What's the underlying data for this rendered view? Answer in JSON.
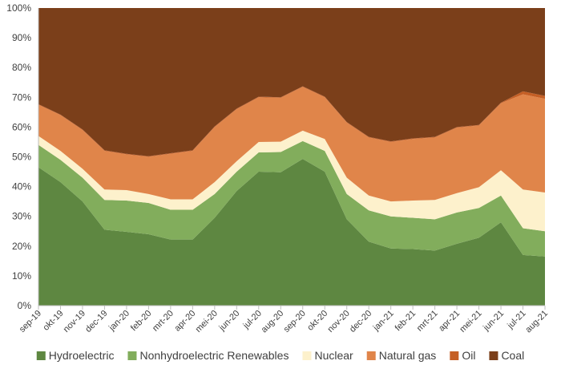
{
  "chart_data": {
    "type": "area",
    "stacked": true,
    "percent": true,
    "categories": [
      "sep-19",
      "okt-19",
      "nov-19",
      "dec-19",
      "jan-20",
      "feb-20",
      "mrt-20",
      "apr-20",
      "mei-20",
      "jun-20",
      "jul-20",
      "aug-20",
      "sep-20",
      "okt-20",
      "nov-20",
      "dec-20",
      "jan-21",
      "feb-21",
      "mrt-21",
      "apr-21",
      "mei-21",
      "jun-21",
      "jul-21",
      "aug-21"
    ],
    "ylim": [
      0,
      100
    ],
    "yticks": [
      "0%",
      "10%",
      "20%",
      "30%",
      "40%",
      "50%",
      "60%",
      "70%",
      "80%",
      "90%",
      "100%"
    ],
    "grid": false,
    "legend_position": "bottom",
    "series": [
      {
        "name": "Hydroelectric",
        "color": "#5e8741",
        "values": [
          46.5,
          41.5,
          35,
          25.5,
          24.8,
          24,
          22.2,
          22.2,
          29.5,
          38.5,
          45,
          44.8,
          49.3,
          45,
          29,
          21.5,
          19.2,
          19,
          18.5,
          20.8,
          22.8,
          28,
          17,
          16.5
        ]
      },
      {
        "name": "Nonhydroelectric Renewables",
        "color": "#82ad5c",
        "values": [
          7.5,
          7.5,
          8,
          10,
          10.5,
          10.5,
          10,
          10,
          8,
          6.5,
          6.5,
          6.8,
          6,
          7,
          8.5,
          10.5,
          10.8,
          10.5,
          10.5,
          10.5,
          10,
          9,
          9,
          8.5
        ]
      },
      {
        "name": "Nuclear",
        "color": "#fdf1cc",
        "values": [
          3,
          3,
          3,
          3.5,
          3.5,
          3,
          3.5,
          3.5,
          4,
          3.5,
          3.5,
          3.5,
          3.5,
          4,
          5.5,
          5,
          5,
          5.8,
          6.5,
          6.5,
          7,
          8.5,
          13,
          13
        ]
      },
      {
        "name": "Natural gas",
        "color": "#e0854a",
        "values": [
          10.5,
          12,
          13,
          13,
          12,
          12.5,
          15.3,
          16.3,
          18.5,
          17.5,
          15,
          14.7,
          14.7,
          14,
          18.5,
          19.5,
          20,
          20.7,
          21,
          22,
          20.7,
          22.5,
          32,
          31.5
        ]
      },
      {
        "name": "Oil",
        "color": "#c55f25",
        "values": [
          0.2,
          0.2,
          0.2,
          0.2,
          0.2,
          0.2,
          0.2,
          0.2,
          0.2,
          0.2,
          0.2,
          0.2,
          0.2,
          0.2,
          0.2,
          0.2,
          0.2,
          0.2,
          0.2,
          0.2,
          0.2,
          0.2,
          1.0,
          1.0
        ]
      },
      {
        "name": "Coal",
        "color": "#7b3f1a",
        "values": [
          32.3,
          35.8,
          40.8,
          47.8,
          49,
          49.8,
          48.8,
          47.8,
          39.8,
          33.8,
          29.8,
          30,
          26.3,
          29.8,
          38.3,
          43.3,
          44.8,
          43.8,
          43.3,
          40,
          39.3,
          31.8,
          28,
          29.5
        ]
      }
    ]
  }
}
